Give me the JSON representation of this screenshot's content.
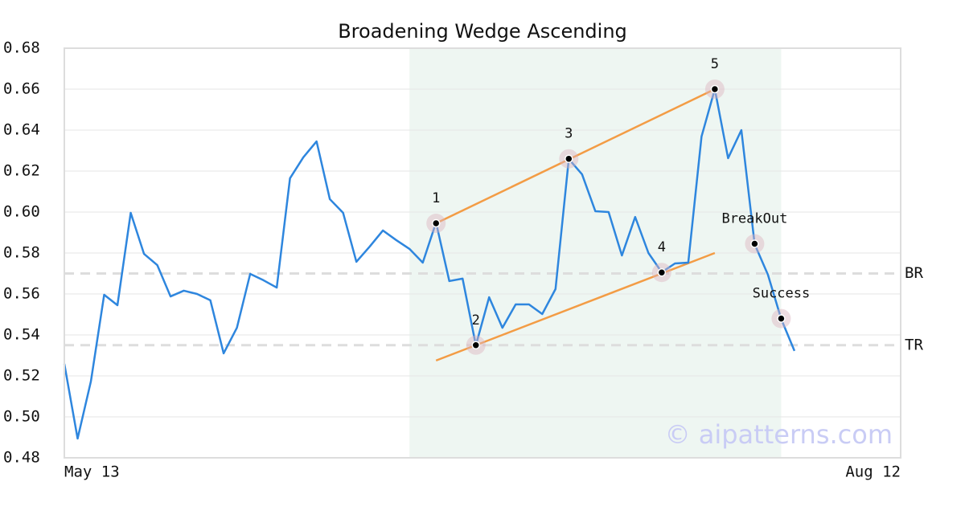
{
  "chart_data": {
    "type": "line",
    "title": "Broadening Wedge Ascending",
    "x": [
      0,
      1,
      2,
      3,
      4,
      5,
      6,
      7,
      8,
      9,
      10,
      11,
      12,
      13,
      14,
      15,
      16,
      17,
      18,
      19,
      20,
      21,
      22,
      23,
      24,
      25,
      26,
      27,
      28,
      29,
      30,
      31,
      32,
      33,
      34,
      35,
      36,
      37,
      38,
      39,
      40,
      41,
      42,
      43,
      44,
      45,
      46,
      47,
      48,
      49,
      50,
      51,
      52,
      53,
      54,
      55
    ],
    "values": [
      0.5259,
      0.4894,
      0.5173,
      0.5596,
      0.5545,
      0.5996,
      0.5796,
      0.5741,
      0.5588,
      0.5616,
      0.56,
      0.5569,
      0.531,
      0.5435,
      0.5698,
      0.5667,
      0.5631,
      0.6165,
      0.6267,
      0.6345,
      0.6063,
      0.5996,
      0.5757,
      0.5831,
      0.591,
      0.5863,
      0.582,
      0.5753,
      0.5949,
      0.5663,
      0.5675,
      0.5349,
      0.5584,
      0.5435,
      0.5549,
      0.5549,
      0.5502,
      0.5624,
      0.6259,
      0.6184,
      0.6004,
      0.6,
      0.5788,
      0.5976,
      0.58,
      0.5706,
      0.5749,
      0.5753,
      0.6369,
      0.66,
      0.6263,
      0.64,
      0.5843,
      0.5694,
      0.5478,
      0.5322
    ],
    "color": "#2e86de",
    "xlim": [
      0,
      63
    ],
    "xticks": [
      {
        "value": 0,
        "label": "May 13"
      },
      {
        "value": 63,
        "label": "Aug 12"
      }
    ],
    "ylim": [
      0.48,
      0.68
    ],
    "yticks": [
      {
        "value": 0.48,
        "label": "0.48"
      },
      {
        "value": 0.5,
        "label": "0.50"
      },
      {
        "value": 0.52,
        "label": "0.52"
      },
      {
        "value": 0.54,
        "label": "0.54"
      },
      {
        "value": 0.56,
        "label": "0.56"
      },
      {
        "value": 0.58,
        "label": "0.58"
      },
      {
        "value": 0.6,
        "label": "0.60"
      },
      {
        "value": 0.62,
        "label": "0.62"
      },
      {
        "value": 0.64,
        "label": "0.64"
      },
      {
        "value": 0.66,
        "label": "0.66"
      },
      {
        "value": 0.68,
        "label": "0.68"
      }
    ],
    "grid": true,
    "highlight": {
      "x": [
        26,
        54
      ],
      "color": "#eef6f2"
    },
    "levels": [
      {
        "label": "BR",
        "value": 0.57
      },
      {
        "label": "TR",
        "value": 0.535
      }
    ],
    "trendlines": [
      {
        "x": [
          28,
          49
        ],
        "values": [
          0.5945,
          0.66
        ],
        "color": "#f39c45"
      },
      {
        "x": [
          28,
          49
        ],
        "values": [
          0.5275,
          0.58
        ],
        "color": "#f39c45"
      }
    ],
    "annotations": [
      {
        "label": "1",
        "x": 28,
        "value": 0.5945
      },
      {
        "label": "2",
        "x": 31,
        "value": 0.535
      },
      {
        "label": "3",
        "x": 38,
        "value": 0.626
      },
      {
        "label": "4",
        "x": 45,
        "value": 0.5705
      },
      {
        "label": "5",
        "x": 49,
        "value": 0.66
      },
      {
        "label": "BreakOut",
        "x": 52,
        "value": 0.5845
      },
      {
        "label": "Success",
        "x": 54,
        "value": 0.548
      }
    ],
    "watermark": "© aipatterns.com"
  }
}
